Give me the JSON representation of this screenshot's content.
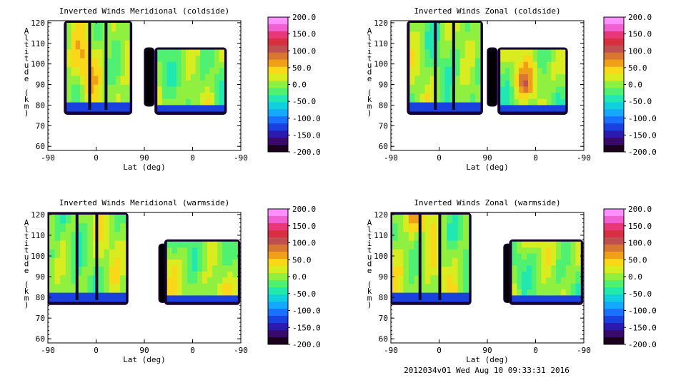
{
  "footer": "2012034v01 Wed Aug 10 09:33:31 2016",
  "colorbar": {
    "labels": [
      "200.0",
      "150.0",
      "100.0",
      "50.0",
      "0.0",
      "-50.0",
      "-100.0",
      "-150.0",
      "-200.0"
    ],
    "colors": [
      "#1a001a",
      "#3a0a6a",
      "#2a1ab0",
      "#1a40e0",
      "#1a70ff",
      "#15a8ff",
      "#10d0e0",
      "#20e8b0",
      "#50f070",
      "#90f040",
      "#d8ec20",
      "#f8d818",
      "#f0a018",
      "#d87830",
      "#c05050",
      "#d83040",
      "#e83878",
      "#f060d0",
      "#ff90ff"
    ]
  },
  "chart_data": [
    {
      "type": "heatmap",
      "title": "Inverted Winds Meridional (coldside)",
      "xlabel": "Lat (deg)",
      "ylabel": "Altitude (km)",
      "x_ticks": [
        "-90",
        "0",
        "90",
        "0",
        "-90"
      ],
      "y_ticks": [
        "60",
        "70",
        "80",
        "90",
        "100",
        "110",
        "120"
      ],
      "ylim": [
        58,
        121
      ],
      "value_range": [
        -200,
        200
      ]
    },
    {
      "type": "heatmap",
      "title": "Inverted Winds Zonal (coldside)",
      "xlabel": "Lat (deg)",
      "ylabel": "Altitude (km)",
      "x_ticks": [
        "-90",
        "0",
        "90",
        "0",
        "-90"
      ],
      "y_ticks": [
        "60",
        "70",
        "80",
        "90",
        "100",
        "110",
        "120"
      ],
      "ylim": [
        58,
        121
      ],
      "value_range": [
        -200,
        200
      ]
    },
    {
      "type": "heatmap",
      "title": "Inverted Winds Meridional (warmside)",
      "xlabel": "Lat (deg)",
      "ylabel": "Altitude (km)",
      "x_ticks": [
        "-90",
        "0",
        "90",
        "0",
        "-90"
      ],
      "y_ticks": [
        "60",
        "70",
        "80",
        "90",
        "100",
        "110",
        "120"
      ],
      "ylim": [
        58,
        121
      ],
      "value_range": [
        -200,
        200
      ]
    },
    {
      "type": "heatmap",
      "title": "Inverted Winds Zonal (warmside)",
      "xlabel": "Lat (deg)",
      "ylabel": "Altitude (km)",
      "x_ticks": [
        "-90",
        "0",
        "90",
        "0",
        "-90"
      ],
      "y_ticks": [
        "60",
        "70",
        "80",
        "90",
        "100",
        "110",
        "120"
      ],
      "ylim": [
        58,
        121
      ],
      "value_range": [
        -200,
        200
      ]
    }
  ]
}
